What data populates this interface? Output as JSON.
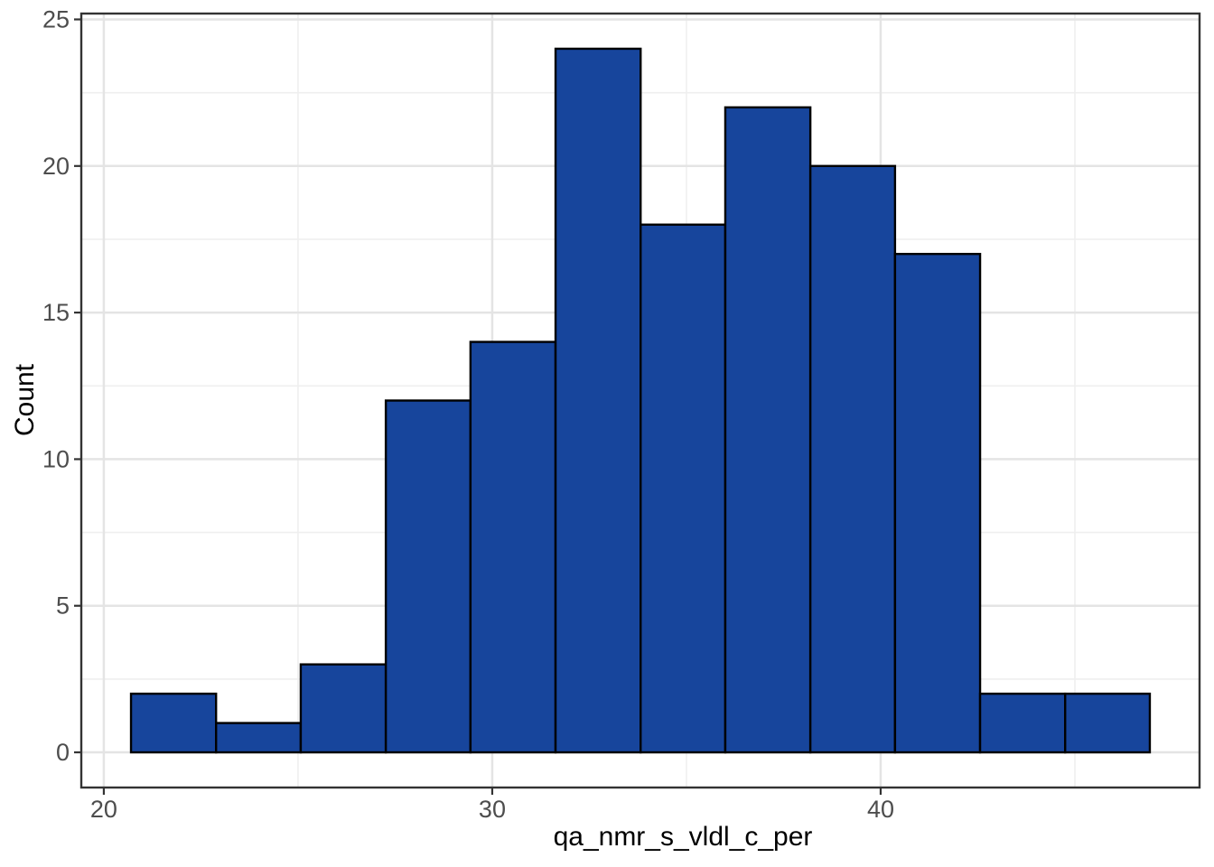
{
  "chart_data": {
    "type": "bar",
    "variant": "histogram",
    "title": "",
    "xlabel": "qa_nmr_s_vldl_c_per",
    "ylabel": "Count",
    "bins": {
      "bin_start": 20.7,
      "bin_width": 2.186,
      "bin_edges": [
        20.7,
        22.89,
        25.07,
        27.26,
        29.44,
        31.63,
        33.82,
        36.0,
        38.19,
        40.37,
        42.56,
        44.75,
        46.93
      ],
      "counts": [
        2,
        1,
        3,
        12,
        14,
        24,
        18,
        22,
        20,
        17,
        2,
        2
      ]
    },
    "x_axis": {
      "range": [
        19.42,
        48.21
      ],
      "major_ticks": [
        20,
        30,
        40
      ],
      "major_tick_labels": [
        "20",
        "30",
        "40"
      ],
      "minor_ticks": [
        25,
        35,
        45
      ]
    },
    "y_axis": {
      "range": [
        -1.2,
        25.2
      ],
      "major_ticks": [
        0,
        5,
        10,
        15,
        20,
        25
      ],
      "major_tick_labels": [
        "0",
        "5",
        "10",
        "15",
        "20",
        "25"
      ],
      "minor_ticks": [
        2.5,
        7.5,
        12.5,
        17.5,
        22.5
      ]
    },
    "legend": null,
    "grid": "on",
    "style": {
      "bar_fill": "#17459C",
      "bar_stroke": "#000000",
      "panel_background": "#FFFFFF",
      "panel_border": "#333333",
      "grid_major": "#E4E4E4",
      "grid_minor": "#EFEFEF",
      "tick_color": "#333333",
      "tick_label_color": "#4D4D4D",
      "axis_title_color": "#000000"
    }
  }
}
